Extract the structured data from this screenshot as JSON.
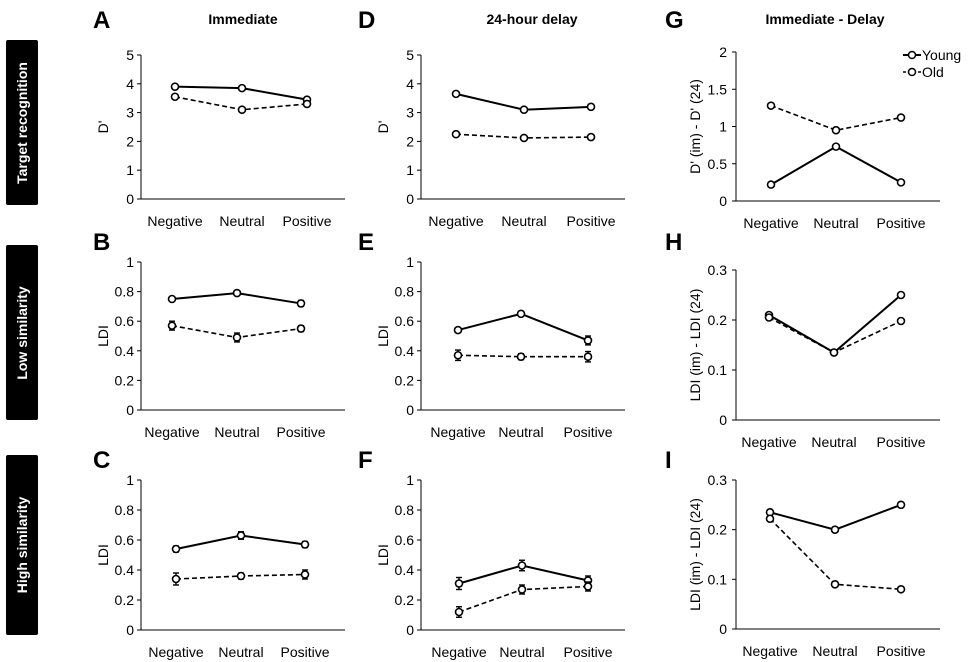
{
  "column_titles": [
    "Immediate",
    "24-hour delay",
    "Immediate - Delay"
  ],
  "row_labels": [
    "Target recognition",
    "Low similarity",
    "High similarity"
  ],
  "legend": {
    "young": "Young",
    "old": "Old",
    "placement": "top-right of panel G"
  },
  "colors": {
    "line": "#000000",
    "marker_fill": "#ffffff",
    "row_label_bg": "#000000",
    "row_label_text": "#ffffff"
  },
  "chart_data": [
    {
      "panel": "A",
      "type": "line",
      "ylabel": "D'",
      "ylim": [
        0,
        5
      ],
      "yticks": [
        "0",
        "1",
        "2",
        "3",
        "4",
        "5"
      ],
      "categories": [
        "Negative",
        "Neutral",
        "Positive"
      ],
      "error_bars": false,
      "series": [
        {
          "name": "Young",
          "values": [
            3.9,
            3.85,
            3.45
          ],
          "style": "solid"
        },
        {
          "name": "Old",
          "values": [
            3.55,
            3.1,
            3.3
          ],
          "style": "dashed"
        }
      ]
    },
    {
      "panel": "B",
      "type": "line",
      "ylabel": "LDI",
      "ylim": [
        0,
        1
      ],
      "yticks": [
        "0",
        "0.2",
        "0.4",
        "0.6",
        "0.8",
        "1"
      ],
      "categories": [
        "Negative",
        "Neutral",
        "Positive"
      ],
      "error_bars": true,
      "series": [
        {
          "name": "Young",
          "values": [
            0.75,
            0.79,
            0.72
          ],
          "err": [
            0.015,
            0.015,
            0.02
          ],
          "style": "solid"
        },
        {
          "name": "Old",
          "values": [
            0.57,
            0.49,
            0.55
          ],
          "err": [
            0.03,
            0.03,
            0.02
          ],
          "style": "dashed"
        }
      ]
    },
    {
      "panel": "C",
      "type": "line",
      "ylabel": "LDI",
      "ylim": [
        0,
        1
      ],
      "yticks": [
        "0",
        "0.2",
        "0.4",
        "0.6",
        "0.8",
        "1"
      ],
      "categories": [
        "Negative",
        "Neutral",
        "Positive"
      ],
      "error_bars": true,
      "series": [
        {
          "name": "Young",
          "values": [
            0.54,
            0.63,
            0.57
          ],
          "err": [
            0.02,
            0.025,
            0.02
          ],
          "style": "solid"
        },
        {
          "name": "Old",
          "values": [
            0.34,
            0.36,
            0.37
          ],
          "err": [
            0.04,
            0.02,
            0.03
          ],
          "style": "dashed"
        }
      ]
    },
    {
      "panel": "D",
      "type": "line",
      "ylabel": "D'",
      "ylim": [
        0,
        5
      ],
      "yticks": [
        "0",
        "1",
        "2",
        "3",
        "4",
        "5"
      ],
      "categories": [
        "Negative",
        "Neutral",
        "Positive"
      ],
      "error_bars": false,
      "series": [
        {
          "name": "Young",
          "values": [
            3.65,
            3.1,
            3.2
          ],
          "style": "solid"
        },
        {
          "name": "Old",
          "values": [
            2.25,
            2.12,
            2.15
          ],
          "style": "dashed"
        }
      ]
    },
    {
      "panel": "E",
      "type": "line",
      "ylabel": "LDI",
      "ylim": [
        0,
        1
      ],
      "yticks": [
        "0",
        "0.2",
        "0.4",
        "0.6",
        "0.8",
        "1"
      ],
      "categories": [
        "Negative",
        "Neutral",
        "Positive"
      ],
      "error_bars": true,
      "series": [
        {
          "name": "Young",
          "values": [
            0.54,
            0.65,
            0.47
          ],
          "err": [
            0.015,
            0.015,
            0.03
          ],
          "style": "solid"
        },
        {
          "name": "Old",
          "values": [
            0.37,
            0.36,
            0.36
          ],
          "err": [
            0.035,
            0.02,
            0.035
          ],
          "style": "dashed"
        }
      ]
    },
    {
      "panel": "F",
      "type": "line",
      "ylabel": "LDI",
      "ylim": [
        0,
        1
      ],
      "yticks": [
        "0",
        "0.2",
        "0.4",
        "0.6",
        "0.8",
        "1"
      ],
      "categories": [
        "Negative",
        "Neutral",
        "Positive"
      ],
      "error_bars": true,
      "series": [
        {
          "name": "Young",
          "values": [
            0.31,
            0.43,
            0.33
          ],
          "err": [
            0.04,
            0.035,
            0.03
          ],
          "style": "solid"
        },
        {
          "name": "Old",
          "values": [
            0.12,
            0.27,
            0.29
          ],
          "err": [
            0.035,
            0.03,
            0.03
          ],
          "style": "dashed"
        }
      ]
    },
    {
      "panel": "G",
      "type": "line",
      "ylabel": "D' (im) - D' (24)",
      "ylim": [
        0,
        2
      ],
      "yticks": [
        "0",
        "0.5",
        "1",
        "1.5",
        "2"
      ],
      "categories": [
        "Negative",
        "Neutral",
        "Positive"
      ],
      "error_bars": false,
      "series": [
        {
          "name": "Young",
          "values": [
            0.22,
            0.73,
            0.25
          ],
          "style": "solid"
        },
        {
          "name": "Old",
          "values": [
            1.28,
            0.95,
            1.12
          ],
          "style": "dashed"
        }
      ]
    },
    {
      "panel": "H",
      "type": "line",
      "ylabel": "LDI (im) - LDI (24)",
      "ylim": [
        0,
        0.3
      ],
      "yticks": [
        "0",
        "0.1",
        "0.2",
        "0.3"
      ],
      "categories": [
        "Negative",
        "Neutral",
        "Positive"
      ],
      "error_bars": false,
      "series": [
        {
          "name": "Young",
          "values": [
            0.21,
            0.135,
            0.25
          ],
          "style": "solid"
        },
        {
          "name": "Old",
          "values": [
            0.205,
            0.135,
            0.198
          ],
          "style": "dashed"
        }
      ]
    },
    {
      "panel": "I",
      "type": "line",
      "ylabel": "LDI (im) - LDI (24)",
      "ylim": [
        0,
        0.3
      ],
      "yticks": [
        "0",
        "0.1",
        "0.2",
        "0.3"
      ],
      "categories": [
        "Negative",
        "Neutral",
        "Positive"
      ],
      "error_bars": false,
      "series": [
        {
          "name": "Young",
          "values": [
            0.235,
            0.2,
            0.25
          ],
          "style": "solid"
        },
        {
          "name": "Old",
          "values": [
            0.222,
            0.09,
            0.08
          ],
          "style": "dashed"
        }
      ]
    }
  ]
}
